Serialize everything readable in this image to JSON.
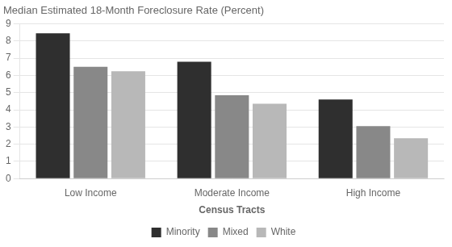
{
  "chart_data": {
    "type": "bar",
    "title": "Median Estimated 18-Month Foreclosure Rate (Percent)",
    "xlabel": "Census Tracts",
    "categories": [
      "Low Income",
      "Moderate Income",
      "High Income"
    ],
    "series": [
      {
        "name": "Minority",
        "color": "#2f2f2f",
        "values": [
          8.45,
          6.8,
          4.6
        ]
      },
      {
        "name": "Mixed",
        "color": "#888888",
        "values": [
          6.5,
          4.85,
          3.05
        ]
      },
      {
        "name": "White",
        "color": "#b8b8b8",
        "values": [
          6.25,
          4.35,
          2.35
        ]
      }
    ],
    "ylim": [
      0,
      9
    ],
    "yticks": [
      0,
      1,
      2,
      3,
      4,
      5,
      6,
      7,
      8,
      9
    ],
    "grid": true,
    "legend": "bottom"
  }
}
